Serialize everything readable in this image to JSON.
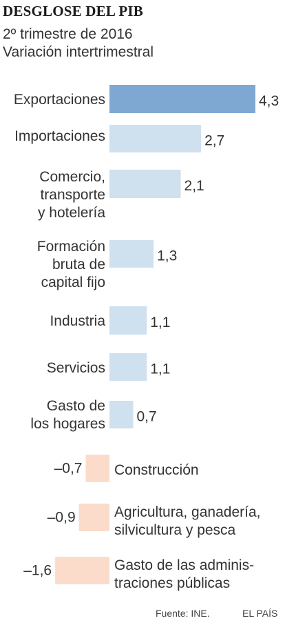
{
  "header": {
    "title": "DESGLOSE DEL PIB",
    "subtitle_line1": "2º trimestre de 2016",
    "subtitle_line2": "Variación intertrimestral"
  },
  "footer": {
    "source": "Fuente: INE.",
    "brand": "EL PAÍS"
  },
  "colors": {
    "highlight": "#7ea8d1",
    "positive": "#cfe0ef",
    "negative": "#fbdccb",
    "text": "#333333"
  },
  "chart_data": {
    "type": "bar",
    "orientation": "horizontal",
    "title": "DESGLOSE DEL PIB",
    "subtitle": "2º trimestre de 2016 — Variación intertrimestral",
    "unit": "%",
    "categories": [
      [
        "Exportaciones"
      ],
      [
        "Importaciones"
      ],
      [
        "Comercio,",
        "transporte",
        "y hotelería"
      ],
      [
        "Formación",
        "bruta de",
        "capital fijo"
      ],
      [
        "Industria"
      ],
      [
        "Servicios"
      ],
      [
        "Gasto de",
        "los hogares"
      ],
      [
        "Construcción"
      ],
      [
        "Agricultura, ganadería,",
        "silvicultura y pesca"
      ],
      [
        "Gasto de las adminis-",
        "traciones públicas"
      ]
    ],
    "values": [
      4.3,
      2.7,
      2.1,
      1.3,
      1.1,
      1.1,
      0.7,
      -0.7,
      -0.9,
      -1.6
    ],
    "value_labels": [
      "4,3",
      "2,7",
      "2,1",
      "1,3",
      "1,1",
      "1,1",
      "0,7",
      "–0,7",
      "–0,9",
      "–1,6"
    ],
    "highlighted_index": 0,
    "grid": false,
    "legend": "none"
  }
}
